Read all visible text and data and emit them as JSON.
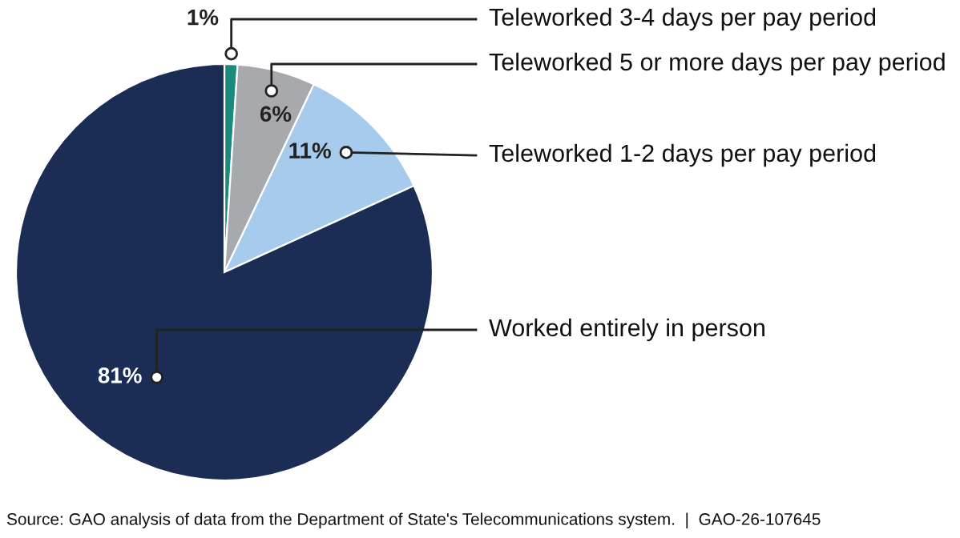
{
  "chart_data": {
    "type": "pie",
    "categories": [
      "Teleworked 3-4 days per pay period",
      "Teleworked 5 or more days per pay period",
      "Teleworked 1-2 days per pay period",
      "Worked entirely in person"
    ],
    "values": [
      1,
      6,
      11,
      81
    ],
    "value_labels": [
      "1%",
      "6%",
      "11%",
      "81%"
    ],
    "colors": [
      "#1a8c7c",
      "#a7a9ac",
      "#a6cbec",
      "#1b2d54"
    ],
    "legend": false,
    "annotations": [
      "Source: GAO analysis of data from the Department of State's Telecommunications system.  |  GAO-26-107645"
    ]
  }
}
